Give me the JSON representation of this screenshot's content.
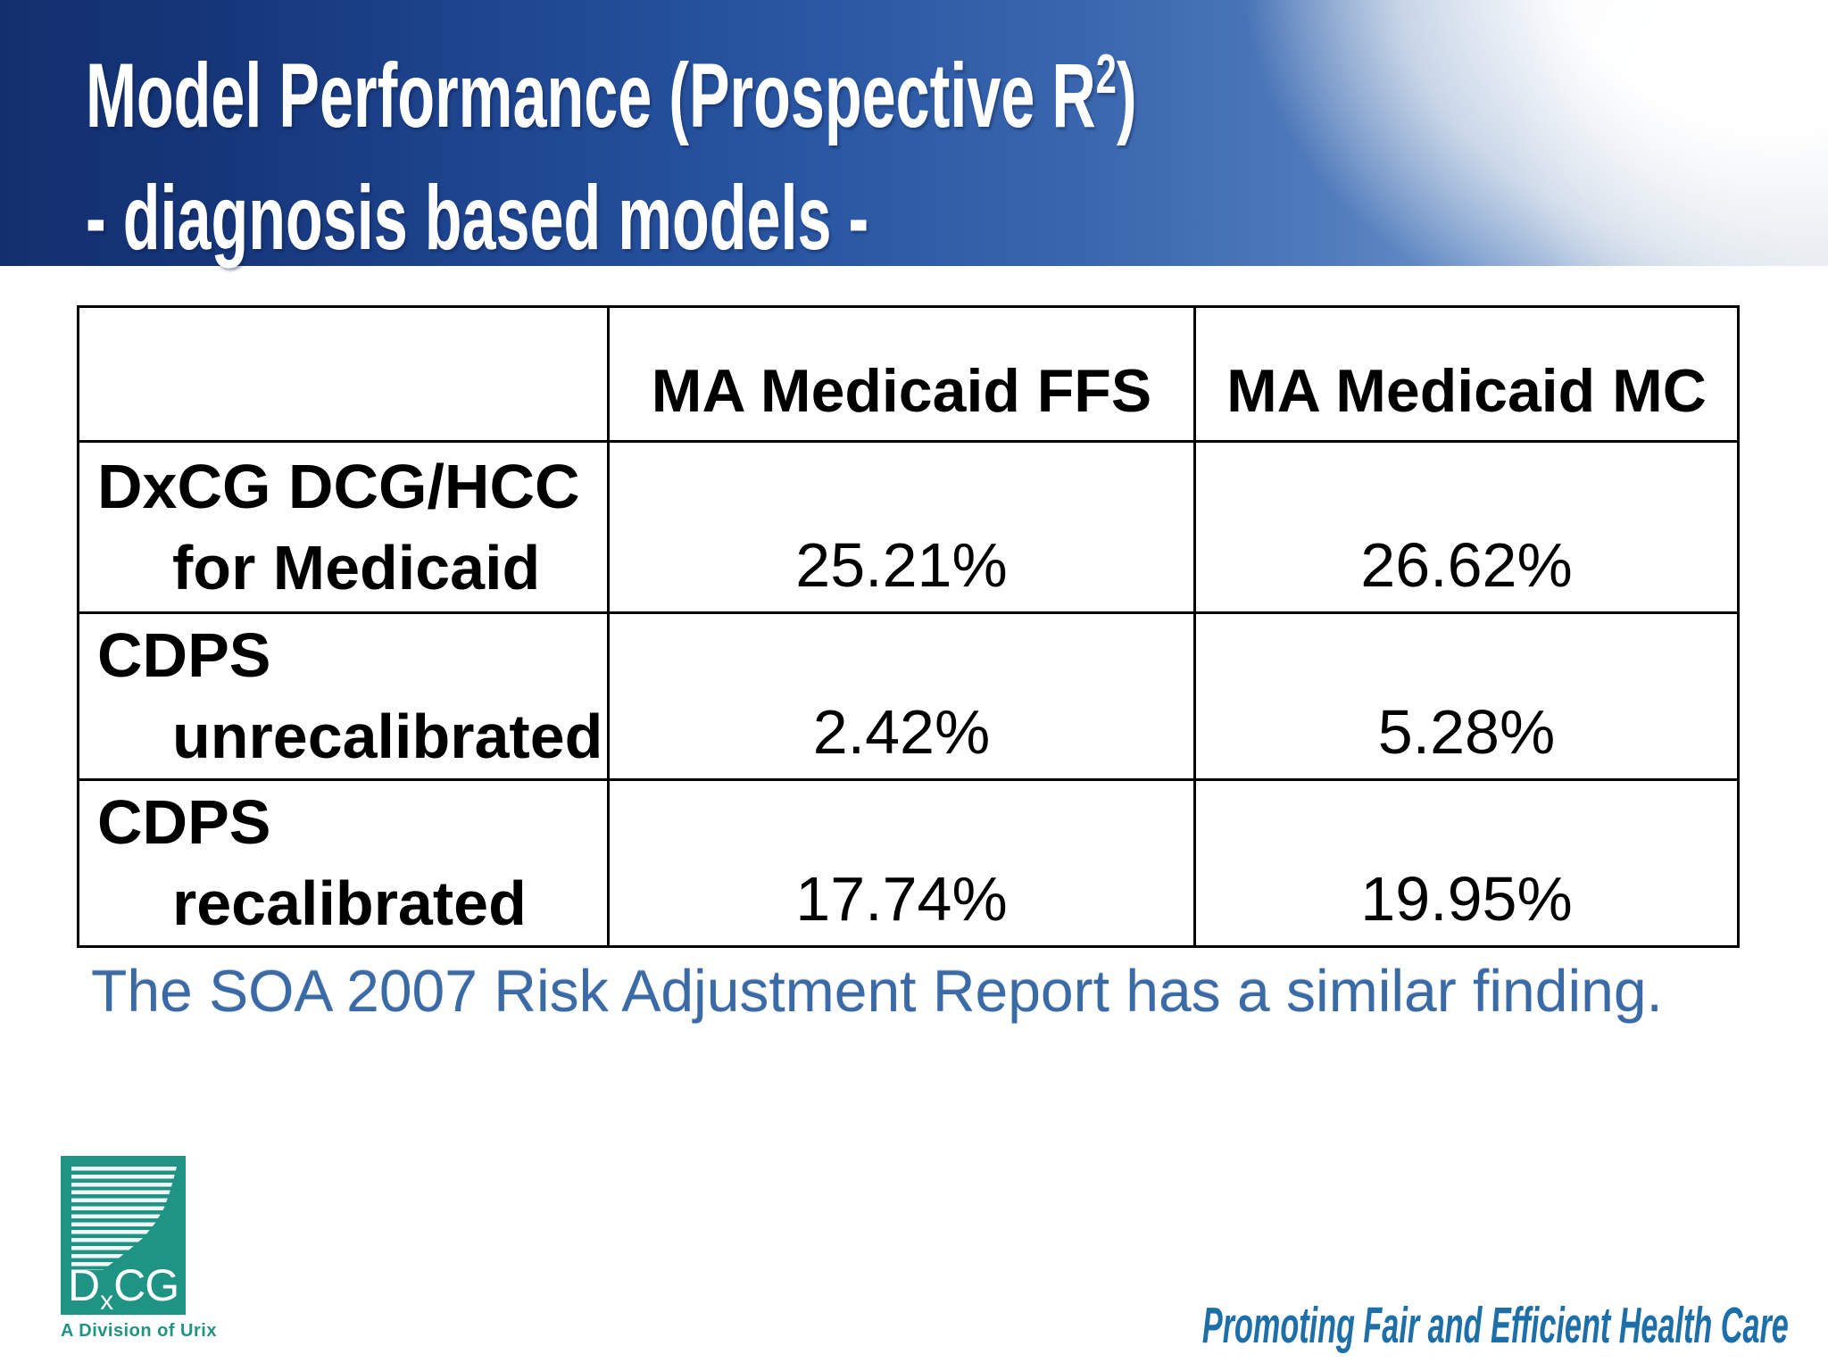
{
  "slide": {
    "title": {
      "line1_pre": "Model Performance (Prospective R",
      "line1_sup": "2",
      "line1_post": ")",
      "line2": "- diagnosis based models -"
    },
    "table": {
      "col_headers": [
        "MA Medicaid FFS",
        "MA Medicaid MC"
      ],
      "rows": [
        {
          "label_line1": "DxCG DCG/HCC",
          "label_line2": "for Medicaid",
          "ffs": "25.21%",
          "mc": "26.62%"
        },
        {
          "label_line1": "CDPS",
          "label_line2": "unrecalibrated",
          "ffs": "2.42%",
          "mc": "5.28%"
        },
        {
          "label_line1": "CDPS",
          "label_line2": "recalibrated",
          "ffs": "17.74%",
          "mc": "19.95%"
        }
      ]
    },
    "note": "The SOA 2007 Risk Adjustment Report has a similar finding.",
    "footer": {
      "logo": {
        "d": "D",
        "x": "x",
        "cg": "CG",
        "division": "A Division of Urix"
      },
      "tagline": "Promoting Fair and Efficient Health Care"
    },
    "colors": {
      "banner_gradient_left": "#13306e",
      "banner_gradient_mid": "#2a57a3",
      "banner_gradient_right": "#9ab3d6",
      "banner_cloud_white": "#e9ecee",
      "title_text": "#ffffff",
      "table_border": "#000000",
      "table_text": "#000000",
      "note_blue": "#3a6ba6",
      "tagline_blue": "#1c6fa8",
      "logo_teal": "#1f9484"
    }
  }
}
